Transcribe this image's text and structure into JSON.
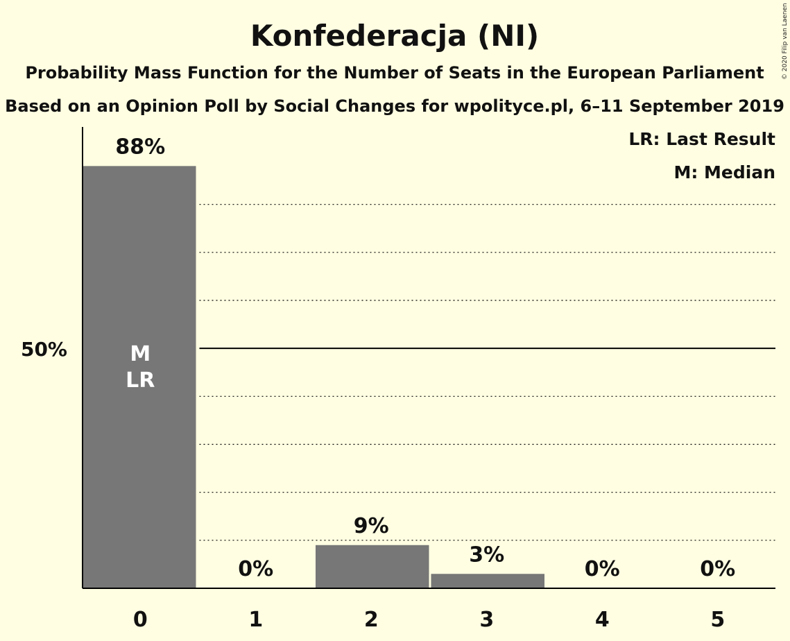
{
  "chart_data": {
    "type": "bar",
    "title": "Konfederacja (NI)",
    "subtitle": "Probability Mass Function for the Number of Seats in the European Parliament",
    "subtitle2": "Based on an Opinion Poll by Social Changes for wpolityce.pl, 6–11 September 2019",
    "copyright": "© 2020 Filip van Laenen",
    "categories": [
      "0",
      "1",
      "2",
      "3",
      "4",
      "5"
    ],
    "values": [
      88,
      0,
      9,
      3,
      0,
      0
    ],
    "value_labels": [
      "88%",
      "0%",
      "9%",
      "3%",
      "0%",
      "0%"
    ],
    "bar_annotations": [
      [
        "M",
        "LR"
      ],
      [],
      [],
      [],
      [],
      []
    ],
    "ylim": [
      0,
      96
    ],
    "yticks": [
      {
        "value": 50,
        "label": "50%"
      }
    ],
    "gridlines": [
      10,
      20,
      30,
      40,
      60,
      70,
      80
    ],
    "legend": [
      "LR: Last Result",
      "M: Median"
    ],
    "legend_position": "top-right",
    "colors": {
      "background": "#FFFEE2",
      "bar": "#777777",
      "axis": "#000000",
      "text": "#111111"
    }
  }
}
